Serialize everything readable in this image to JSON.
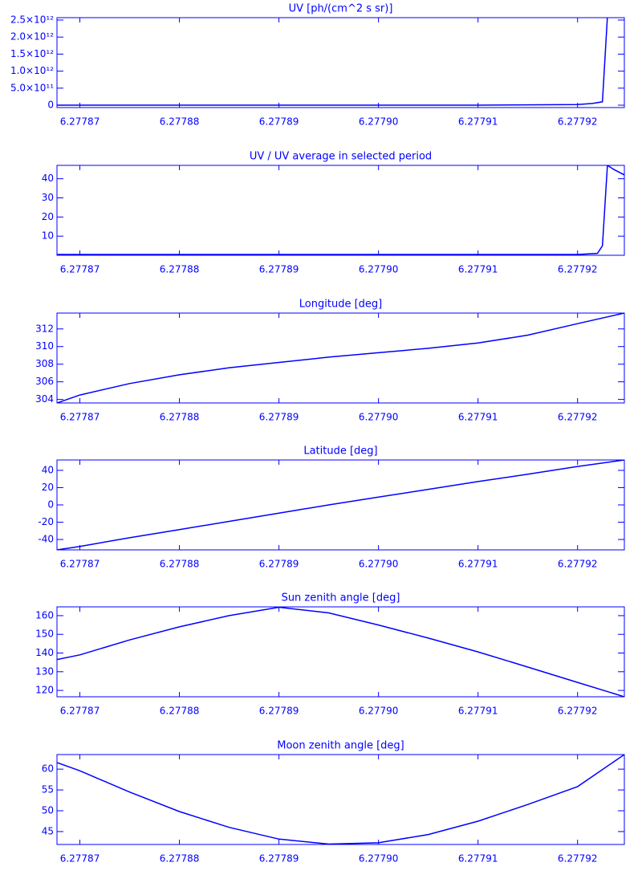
{
  "chart_data": [
    {
      "type": "line",
      "title": "UV [ph/(cm^2 s sr)]",
      "color": "#0000ff",
      "x": [
        6.2778677,
        6.27788,
        6.27789,
        6.2779,
        6.27791,
        6.27792,
        6.2779215,
        6.2779225,
        6.277923
      ],
      "values": [
        0,
        0,
        0,
        0,
        0,
        20000000000,
        50000000000,
        100000000000,
        2600000000000
      ],
      "xlim": [
        6.2778677,
        6.2779247
      ],
      "xticks": [
        6.27787,
        6.27788,
        6.27789,
        {
          "value": 6.2779,
          "label": "6.27790"
        },
        6.27791,
        6.27792
      ],
      "ylim": [
        -70000000000,
        2570000000000
      ],
      "yticks": [
        0,
        {
          "value": 500000000000,
          "label": "5.0×10¹¹"
        },
        {
          "value": 1000000000000,
          "label": "1.0×10¹²"
        },
        {
          "value": 1500000000000,
          "label": "1.5×10¹²"
        },
        {
          "value": 2000000000000,
          "label": "2.0×10¹²"
        },
        {
          "value": 2500000000000,
          "label": "2.5×10¹²"
        }
      ]
    },
    {
      "type": "line",
      "title": "UV / UV average in selected period",
      "color": "#0000ff",
      "x": [
        6.2778677,
        6.27788,
        6.27789,
        6.2779,
        6.27791,
        6.27792,
        6.277922,
        6.2779225,
        6.277923,
        6.2779236,
        6.2779247
      ],
      "values": [
        0.4,
        0.4,
        0.4,
        0.4,
        0.4,
        0.4,
        1,
        5,
        47,
        45,
        42
      ],
      "xlim": [
        6.2778677,
        6.2779247
      ],
      "xticks": [
        6.27787,
        6.27788,
        6.27789,
        {
          "value": 6.2779,
          "label": "6.27790"
        },
        6.27791,
        6.27792
      ],
      "ylim": [
        0,
        47
      ],
      "yticks": [
        10,
        20,
        30,
        40
      ]
    },
    {
      "type": "line",
      "title": "Longitude [deg]",
      "color": "#0000ff",
      "x": [
        6.2778677,
        6.27787,
        6.277875,
        6.27788,
        6.277885,
        6.27789,
        6.277895,
        6.2779,
        6.277905,
        6.27791,
        6.277915,
        6.27792,
        6.2779247
      ],
      "values": [
        303.6,
        304.5,
        305.8,
        306.8,
        307.6,
        308.2,
        308.8,
        309.3,
        309.8,
        310.4,
        311.3,
        312.6,
        313.8
      ],
      "xlim": [
        6.2778677,
        6.2779247
      ],
      "xticks": [
        6.27787,
        6.27788,
        6.27789,
        {
          "value": 6.2779,
          "label": "6.27790"
        },
        6.27791,
        6.27792
      ],
      "ylim": [
        303.6,
        313.8
      ],
      "yticks": [
        304,
        306,
        308,
        310,
        312
      ]
    },
    {
      "type": "line",
      "title": "Latitude [deg]",
      "color": "#0000ff",
      "x": [
        6.2778677,
        6.27787,
        6.277875,
        6.27788,
        6.277885,
        6.27789,
        6.277895,
        6.2779,
        6.277905,
        6.27791,
        6.277915,
        6.27792,
        6.2779247
      ],
      "values": [
        -52,
        -48,
        -38,
        -28.5,
        -19,
        -9.5,
        0,
        9,
        18,
        27,
        35.5,
        44.5,
        52
      ],
      "xlim": [
        6.2778677,
        6.2779247
      ],
      "xticks": [
        6.27787,
        6.27788,
        6.27789,
        {
          "value": 6.2779,
          "label": "6.27790"
        },
        6.27791,
        6.27792
      ],
      "ylim": [
        -52,
        52
      ],
      "yticks": [
        -40,
        -20,
        0,
        20,
        40
      ]
    },
    {
      "type": "line",
      "title": "Sun zenith angle [deg]",
      "color": "#0000ff",
      "x": [
        6.2778677,
        6.27787,
        6.277875,
        6.27788,
        6.277885,
        6.27789,
        6.277895,
        6.2779,
        6.277905,
        6.27791,
        6.277915,
        6.27792,
        6.2779247
      ],
      "values": [
        136.5,
        139,
        147,
        154,
        160,
        164.5,
        161.5,
        155,
        148,
        140.6,
        132.5,
        124.3,
        116.6
      ],
      "xlim": [
        6.2778677,
        6.2779247
      ],
      "xticks": [
        6.27787,
        6.27788,
        6.27789,
        {
          "value": 6.2779,
          "label": "6.27790"
        },
        6.27791,
        6.27792
      ],
      "ylim": [
        116.6,
        164.7
      ],
      "yticks": [
        120,
        130,
        140,
        150,
        160
      ]
    },
    {
      "type": "line",
      "title": "Moon zenith angle [deg]",
      "color": "#0000ff",
      "x": [
        6.2778677,
        6.27787,
        6.277875,
        6.27788,
        6.277885,
        6.27789,
        6.277895,
        6.2779,
        6.277905,
        6.27791,
        6.277915,
        6.27792,
        6.2779247
      ],
      "values": [
        61.6,
        59.6,
        54.5,
        49.8,
        46,
        43.2,
        42,
        42.3,
        44.3,
        47.5,
        51.5,
        55.8,
        63.5
      ],
      "xlim": [
        6.2778677,
        6.2779247
      ],
      "xticks": [
        6.27787,
        6.27788,
        6.27789,
        {
          "value": 6.2779,
          "label": "6.27790"
        },
        6.27791,
        6.27792
      ],
      "ylim": [
        41.9,
        63.5
      ],
      "yticks": [
        45,
        50,
        55,
        60
      ]
    }
  ]
}
